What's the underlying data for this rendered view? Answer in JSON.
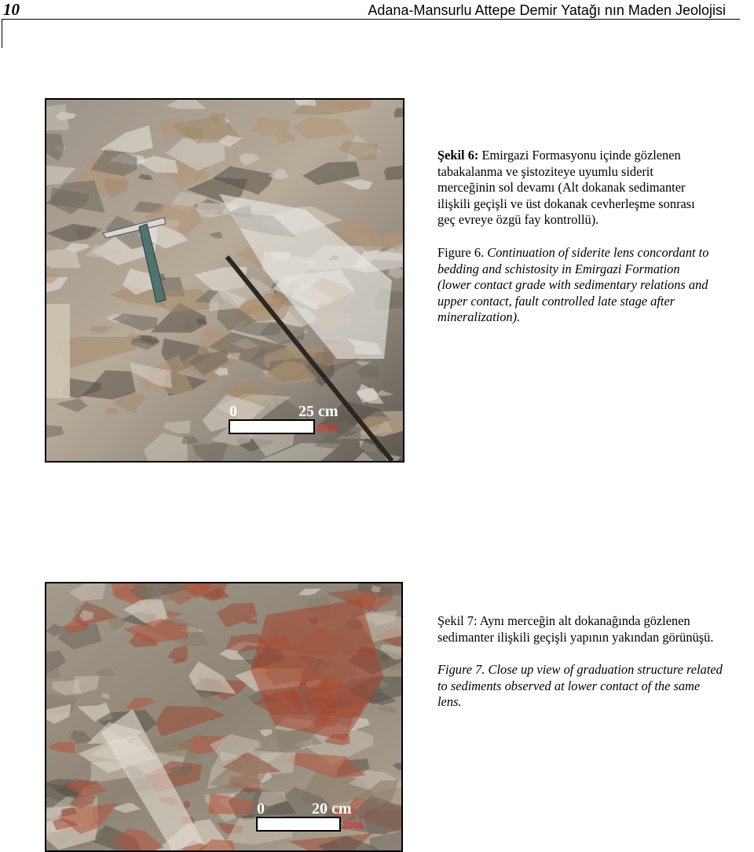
{
  "header": {
    "page_number": "10",
    "title": "Adana-Mansurlu Attepe Demir Yatağı nın Maden Jeolojisi"
  },
  "figures": [
    {
      "photo": {
        "scale_start": "0",
        "scale_end": "25 cm",
        "date_stamp": "2006"
      },
      "caption_tr": {
        "label": "Şekil 6:",
        "lines": [
          "Emirgazi Formasyonu içinde gözlenen",
          "tabakalanma ve şistoziteye uyumlu siderit",
          "merceğinin sol devamı (Alt dokanak sedimanter",
          "ilişkili geçişli ve üst dokanak cevherleşme sonrası",
          "geç evreye özgü fay kontrollü)."
        ]
      },
      "caption_en": {
        "label": "Figure 6.",
        "lines": [
          "Continuation of siderite lens concordant to",
          "bedding and schistosity in Emirgazi Formation",
          "(lower contact grade with sedimentary relations and",
          "upper contact, fault controlled late stage after",
          "mineralization)."
        ]
      }
    },
    {
      "photo": {
        "scale_start": "0",
        "scale_end": "20 cm",
        "date_stamp": "2006"
      },
      "caption_tr": {
        "label": "Şekil 7:",
        "lines": [
          "Aynı merceğin alt dokanağında gözlenen",
          "sedimanter ilişkili geçişli yapının yakından görünüşü."
        ]
      },
      "caption_en": {
        "label": "Figure 7.",
        "lines": [
          "Close up view of graduation structure related",
          "to sediments observed at lower contact of the same",
          "lens."
        ]
      }
    }
  ]
}
